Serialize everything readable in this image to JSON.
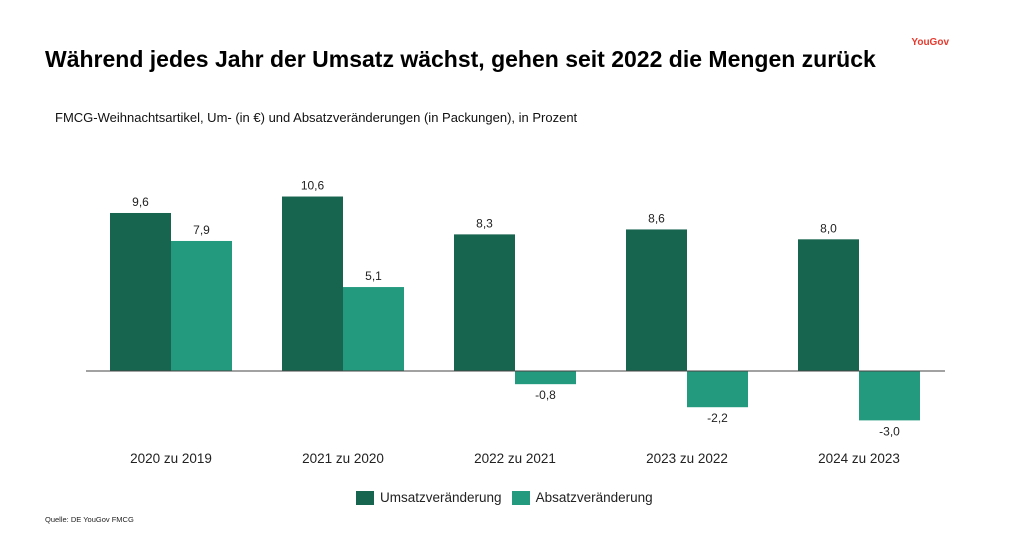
{
  "header": {
    "title": "Während jedes Jahr der Umsatz wächst, gehen seit 2022 die Mengen zurück",
    "subtitle": "FMCG-Weihnachtsartikel, Um- (in €) und Absatzveränderungen (in Packungen), in Prozent",
    "logo": "YouGov",
    "source": "Quelle: DE YouGov FMCG"
  },
  "chart_data": {
    "type": "bar",
    "categories": [
      "2020 zu 2019",
      "2021 zu 2020",
      "2022 zu 2021",
      "2023 zu 2022",
      "2024 zu 2023"
    ],
    "series": [
      {
        "name": "Umsatzveränderung",
        "values": [
          9.6,
          10.6,
          8.3,
          8.6,
          8.0
        ],
        "labels": [
          "9,6",
          "10,6",
          "8,3",
          "8,6",
          "8,0"
        ],
        "color": "#17644f"
      },
      {
        "name": "Absatzveränderung",
        "values": [
          7.9,
          5.1,
          -0.8,
          -2.2,
          -3.0
        ],
        "labels": [
          "7,9",
          "5,1",
          "-0,8",
          "-2,2",
          "-3,0"
        ],
        "color": "#239a7d"
      }
    ],
    "grid": false,
    "legend": "bottom"
  }
}
